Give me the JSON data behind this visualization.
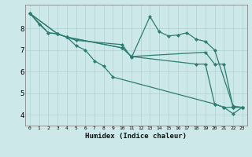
{
  "xlabel": "Humidex (Indice chaleur)",
  "ylabel": "",
  "bg_color": "#cce8e8",
  "line_color": "#2d7d72",
  "grid_color": "#b0d0d0",
  "xlim": [
    -0.5,
    23.5
  ],
  "ylim": [
    3.5,
    9.1
  ],
  "yticks": [
    4,
    5,
    6,
    7,
    8
  ],
  "xticks": [
    0,
    1,
    2,
    3,
    4,
    5,
    6,
    7,
    8,
    9,
    10,
    11,
    12,
    13,
    14,
    15,
    16,
    17,
    18,
    19,
    20,
    21,
    22,
    23
  ],
  "series": [
    {
      "x": [
        0,
        1,
        2,
        3,
        4,
        5,
        6,
        7,
        8,
        9,
        20,
        21,
        22,
        23
      ],
      "y": [
        8.7,
        8.2,
        7.8,
        7.75,
        7.6,
        7.2,
        7.0,
        6.5,
        6.25,
        5.75,
        4.5,
        4.35,
        4.05,
        4.35
      ]
    },
    {
      "x": [
        0,
        2,
        3,
        4,
        5,
        10,
        11,
        13,
        14,
        15,
        16,
        17,
        18,
        19,
        20,
        22,
        23
      ],
      "y": [
        8.7,
        7.8,
        7.75,
        7.6,
        7.45,
        7.25,
        6.65,
        8.55,
        7.85,
        7.65,
        7.7,
        7.8,
        7.5,
        7.4,
        7.0,
        4.4,
        4.35
      ]
    },
    {
      "x": [
        0,
        3,
        4,
        10,
        11,
        19,
        20,
        21,
        22,
        23
      ],
      "y": [
        8.7,
        7.75,
        7.6,
        7.1,
        6.7,
        6.9,
        6.35,
        6.35,
        4.35,
        4.35
      ]
    },
    {
      "x": [
        0,
        3,
        4,
        10,
        11,
        18,
        19,
        20,
        21,
        22,
        23
      ],
      "y": [
        8.7,
        7.75,
        7.6,
        7.1,
        6.7,
        6.35,
        6.35,
        4.5,
        4.35,
        4.35,
        4.35
      ]
    }
  ]
}
